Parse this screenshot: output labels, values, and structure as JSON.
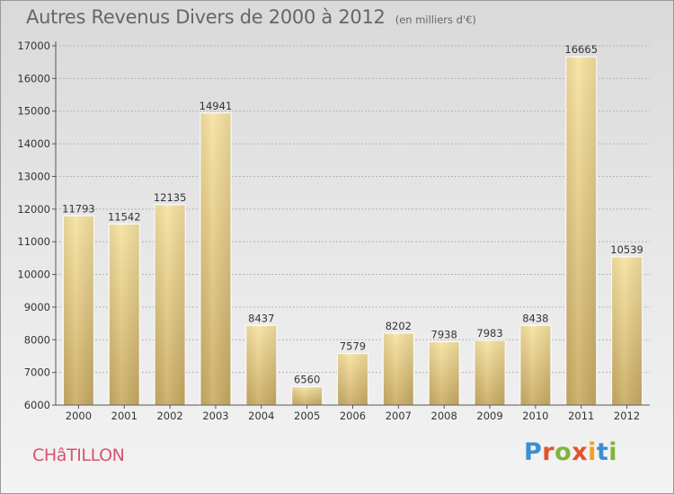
{
  "header": {
    "title": "Autres Revenus Divers de 2000 à 2012",
    "subtitle": "(en milliers d'€)"
  },
  "footer": {
    "location": "CHâTILLON",
    "logo_text": "Proxiti",
    "logo_colors": [
      "#3a8fd0",
      "#e2522b",
      "#7fb43a",
      "#e2522b",
      "#f0a21e",
      "#3a8fd0",
      "#7fb43a"
    ]
  },
  "colors": {
    "bar_light": "#f7e2a0",
    "bar_dark": "#c9ab62",
    "grid": "#b4b4b4",
    "axis": "#555555"
  },
  "chart_data": {
    "type": "bar",
    "title": "Autres Revenus Divers de 2000 à 2012",
    "subtitle": "(en milliers d'€)",
    "categories": [
      "2000",
      "2001",
      "2002",
      "2003",
      "2004",
      "2005",
      "2006",
      "2007",
      "2008",
      "2009",
      "2010",
      "2011",
      "2012"
    ],
    "values": [
      11793,
      11542,
      12135,
      14941,
      8437,
      6560,
      7579,
      8202,
      7938,
      7983,
      8438,
      16665,
      10539
    ],
    "value_labels": [
      "11793",
      "11542",
      "12135",
      "14941",
      "8437",
      "6560",
      "7579",
      "8202",
      "7938",
      "7983",
      "8438",
      "16665",
      "10539"
    ],
    "yticks": [
      "6000",
      "7000",
      "8000",
      "9000",
      "10000",
      "11000",
      "12000",
      "13000",
      "14000",
      "15000",
      "16000",
      "17000"
    ],
    "ylim": [
      6000,
      17000
    ],
    "grid": "horizontal dashed",
    "legend": "none"
  }
}
